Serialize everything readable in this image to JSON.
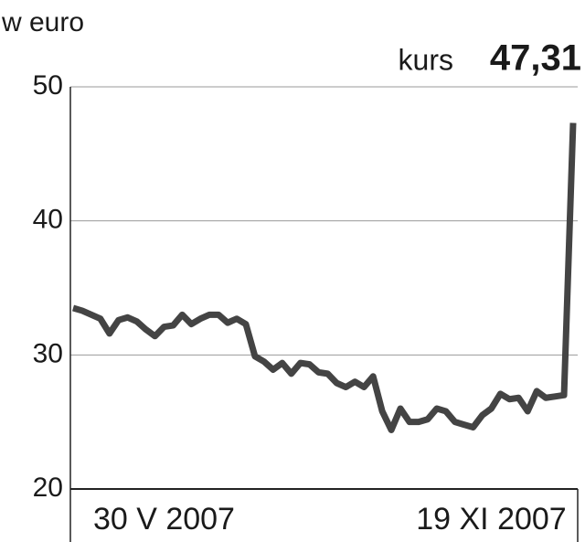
{
  "chart_data": {
    "type": "line",
    "unit_label": "w euro",
    "annotation": "kurs",
    "last_value_label": "47,31",
    "categories": [
      null,
      null,
      null,
      null,
      null,
      null,
      null,
      null,
      null,
      null,
      "30 V 2007",
      null,
      null,
      null,
      null,
      null,
      null,
      null,
      null,
      null,
      null,
      null,
      null,
      null,
      null,
      null,
      null,
      null,
      null,
      null,
      null,
      null,
      null,
      null,
      null,
      null,
      null,
      null,
      null,
      null,
      null,
      null,
      null,
      null,
      null,
      null,
      "19 XI 2007",
      null,
      null,
      null,
      null,
      null,
      null,
      null,
      null,
      null
    ],
    "series": [
      {
        "name": "kurs",
        "color": "#444444",
        "values": [
          33.5,
          33.3,
          33.0,
          32.7,
          31.6,
          32.6,
          32.8,
          32.5,
          31.9,
          31.4,
          32.1,
          32.2,
          33.0,
          32.3,
          32.7,
          33.0,
          33.0,
          32.4,
          32.7,
          32.3,
          29.9,
          29.5,
          28.9,
          29.4,
          28.6,
          29.4,
          29.3,
          28.7,
          28.6,
          27.9,
          27.6,
          28.0,
          27.6,
          28.4,
          25.8,
          24.4,
          26.0,
          25.0,
          25.0,
          25.2,
          26.0,
          25.8,
          25.0,
          24.8,
          24.6,
          25.5,
          26.0,
          27.1,
          26.7,
          26.8,
          25.8,
          27.3,
          26.8,
          26.9,
          27.0,
          47.31
        ]
      }
    ],
    "ylim": [
      20,
      50
    ],
    "yticks": [
      20,
      30,
      40,
      50
    ],
    "grid": true
  }
}
